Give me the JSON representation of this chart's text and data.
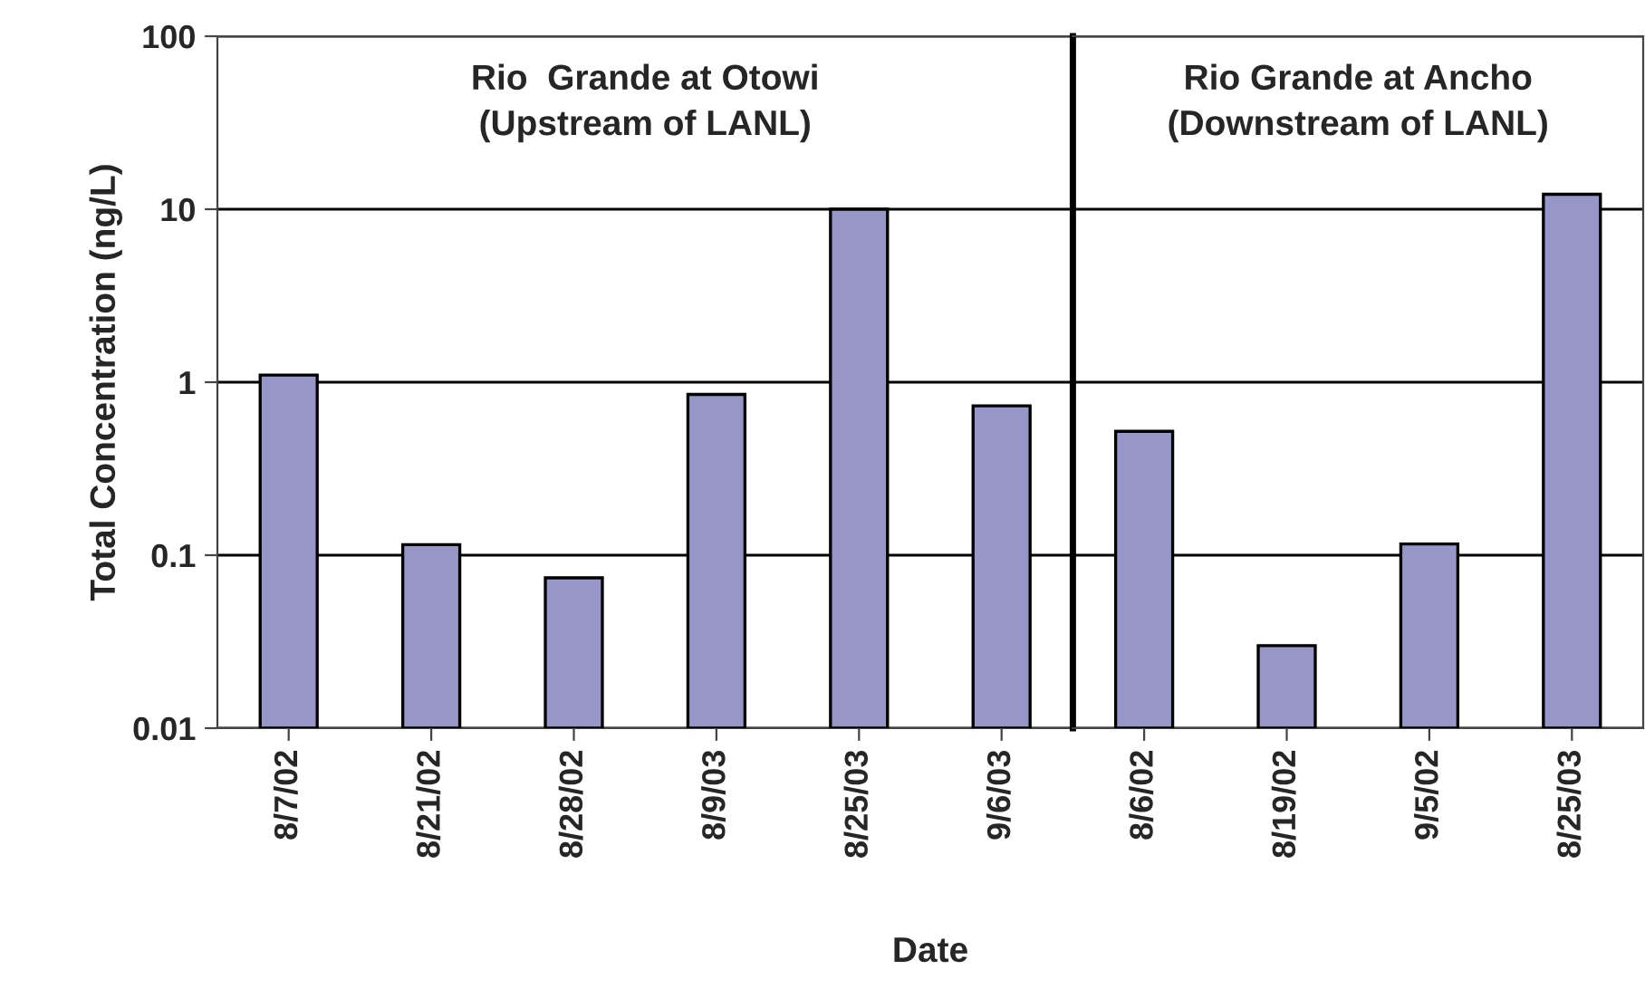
{
  "chart_data": [
    {
      "type": "bar",
      "xlabel": "Date",
      "ylabel": "Total Concentration (ng/L)",
      "categories": [
        "8/7/02",
        "8/21/02",
        "8/28/02",
        "8/9/03",
        "8/25/03",
        "9/6/03"
      ],
      "series": [
        {
          "color": "#9696c8",
          "values": [
            1.1,
            0.115,
            0.074,
            0.85,
            10,
            0.73
          ]
        }
      ],
      "log": true,
      "ylim": [
        0.01,
        100
      ],
      "yticks": [
        0.01,
        0.1,
        1,
        10,
        100
      ],
      "grid": "y",
      "annotations": [
        "Rio  Grande at Otowi\n(Upstream of LANL)"
      ]
    },
    {
      "type": "bar",
      "categories": [
        "8/6/02",
        "8/19/02",
        "9/5/02",
        "8/25/03"
      ],
      "series": [
        {
          "color": "#9696c8",
          "values": [
            0.52,
            0.03,
            0.116,
            12.2
          ]
        }
      ],
      "log": true,
      "ylim": [
        0.01,
        100
      ],
      "yticks": [
        0.01,
        0.1,
        1,
        10,
        100
      ],
      "grid": "y",
      "tick_labels": "x",
      "annotations": [
        "Rio Grande at Ancho\n(Downstream of LANL)"
      ]
    }
  ]
}
